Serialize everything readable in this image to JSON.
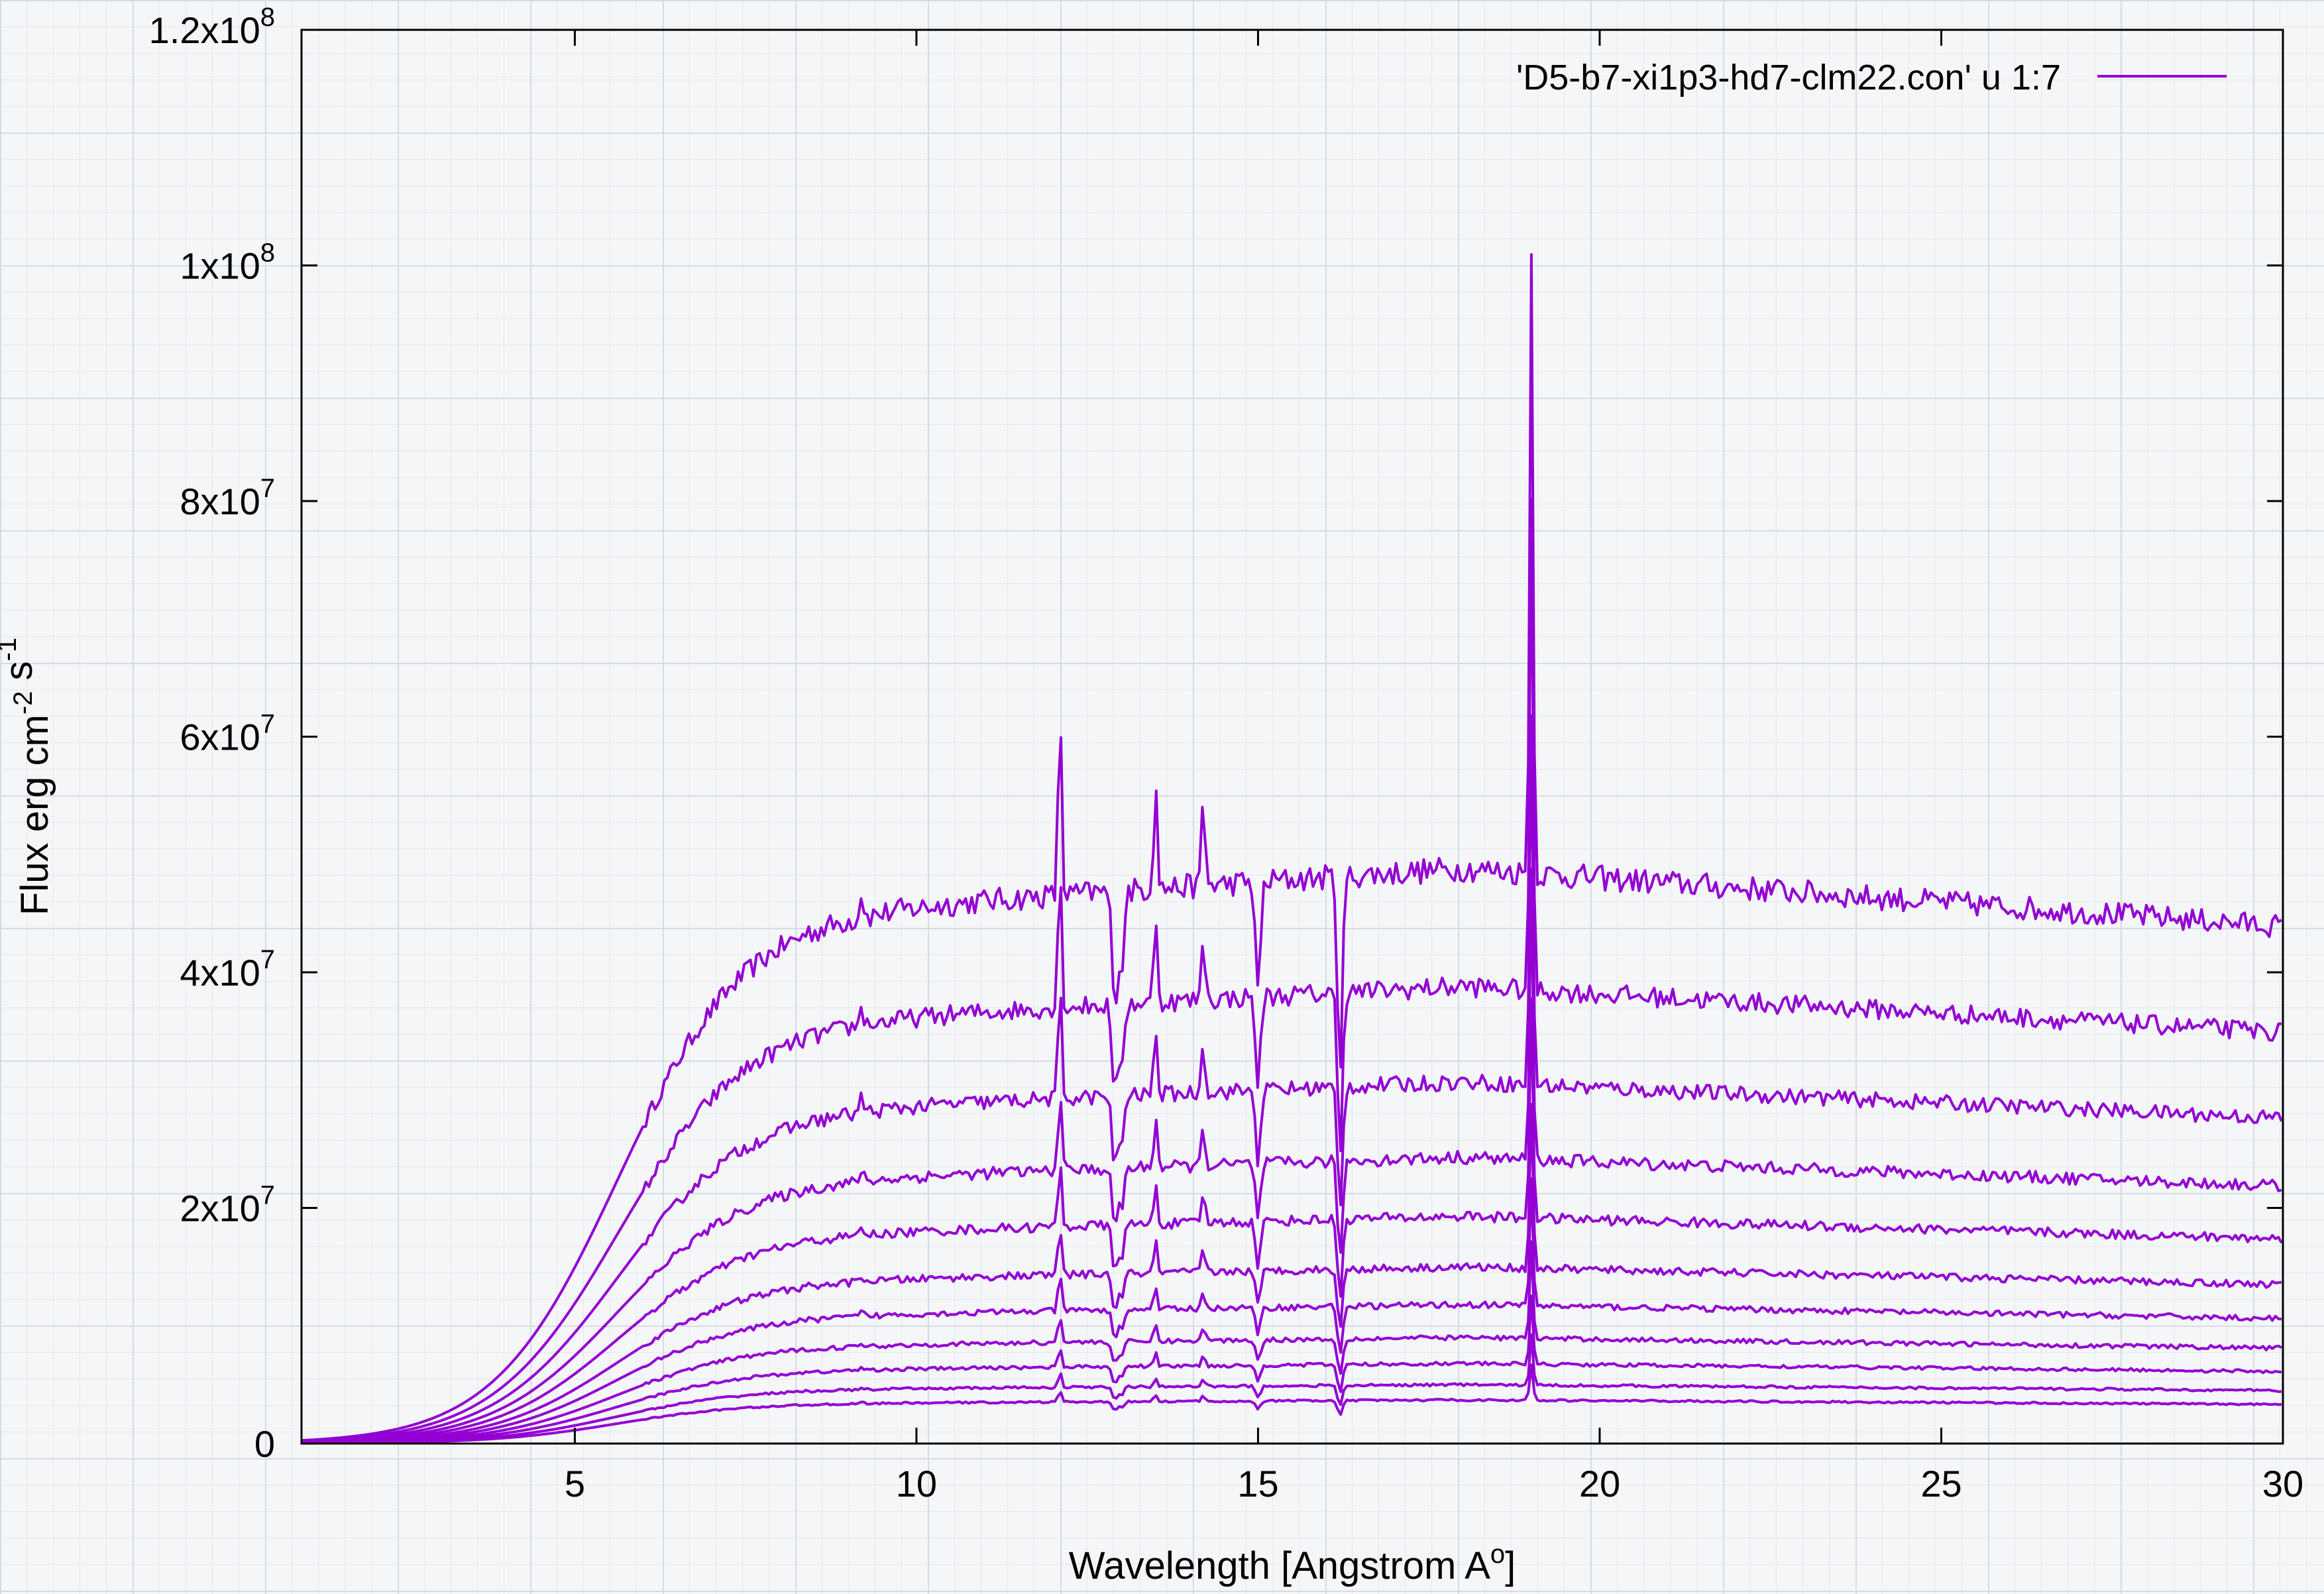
{
  "chart_data": {
    "type": "line",
    "xlabel": "Wavelength [Angstrom A",
    "xlabel_sup": "o",
    "xlabel_end": "]",
    "ylabel_parts": [
      {
        "text": "Flux erg cm",
        "sup": false
      },
      {
        "text": "-2",
        "sup": true
      },
      {
        "text": " s",
        "sup": false
      },
      {
        "text": "-1",
        "sup": true
      }
    ],
    "xlim": [
      1,
      30
    ],
    "ylim": [
      0,
      120000000
    ],
    "x_ticks": [
      {
        "value": 5,
        "label": "5"
      },
      {
        "value": 10,
        "label": "10"
      },
      {
        "value": 15,
        "label": "15"
      },
      {
        "value": 20,
        "label": "20"
      },
      {
        "value": 25,
        "label": "25"
      },
      {
        "value": 30,
        "label": "30"
      }
    ],
    "y_ticks": [
      {
        "value": 0,
        "mant": "0",
        "exp": ""
      },
      {
        "value": 20000000,
        "mant": "2x10",
        "exp": "7"
      },
      {
        "value": 40000000,
        "mant": "4x10",
        "exp": "7"
      },
      {
        "value": 60000000,
        "mant": "6x10",
        "exp": "7"
      },
      {
        "value": 80000000,
        "mant": "8x10",
        "exp": "7"
      },
      {
        "value": 100000000,
        "mant": "1x10",
        "exp": "8"
      },
      {
        "value": 120000000,
        "mant": "1.2x10",
        "exp": "8"
      }
    ],
    "legend": {
      "label": "'D5-b7-xi1p3-hd7-clm22.con' u 1:7",
      "position": "top-right"
    },
    "color": "#9400d3",
    "series_plateaus": [
      48800000,
      38800000,
      30700000,
      24300000,
      19300000,
      15000000,
      11800000,
      9000000,
      6800000,
      5000000,
      3700000
    ],
    "emission_lines": [
      {
        "x": 6.7,
        "peak": 34000000
      },
      {
        "x": 8.4,
        "peak": 43500000
      },
      {
        "x": 9.2,
        "peak": 47000000
      },
      {
        "x": 12.1,
        "peak": 62700000
      },
      {
        "x": 13.5,
        "peak": 57000000
      },
      {
        "x": 14.2,
        "peak": 55000000
      },
      {
        "x": 15.0,
        "peak": 43000000
      },
      {
        "x": 19.0,
        "peak": 101000000
      },
      {
        "x": 21.7,
        "peak": 19000000
      },
      {
        "x": 21.8,
        "peak": 22000000
      },
      {
        "x": 22.1,
        "peak": 44500000
      },
      {
        "x": 24.8,
        "peak": 35600000
      }
    ],
    "absorption_lines": [
      {
        "x": 12.9,
        "depth": 0.22
      },
      {
        "x": 13.0,
        "depth": 0.15
      },
      {
        "x": 15.0,
        "depth": 0.2
      },
      {
        "x": 16.2,
        "depth": 0.35
      }
    ],
    "grid": false
  }
}
